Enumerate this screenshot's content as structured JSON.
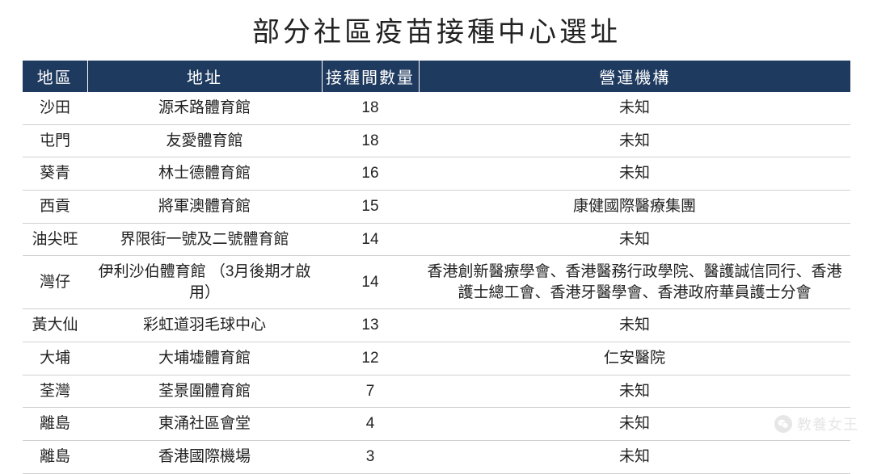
{
  "title": "部分社區疫苗接種中心選址",
  "table": {
    "columns": {
      "district": "地區",
      "address": "地址",
      "count": "接種間數量",
      "operator": "營運機構"
    },
    "column_widths": {
      "district": 80,
      "address": 290,
      "count": 120
    },
    "header_bg": "#1f3a5f",
    "header_fg": "#ffffff",
    "row_border_color": "#d0d0d0",
    "body_font_size": 19,
    "header_font_size": 20,
    "rows": [
      {
        "district": "沙田",
        "address": "源禾路體育館",
        "count": 18,
        "operator": "未知"
      },
      {
        "district": "屯門",
        "address": "友愛體育館",
        "count": 18,
        "operator": "未知"
      },
      {
        "district": "葵青",
        "address": "林士德體育館",
        "count": 16,
        "operator": "未知"
      },
      {
        "district": "西貢",
        "address": "將軍澳體育館",
        "count": 15,
        "operator": "康健國際醫療集團"
      },
      {
        "district": "油尖旺",
        "address": "界限街一號及二號體育館",
        "count": 14,
        "operator": "未知"
      },
      {
        "district": "灣仔",
        "address": "伊利沙伯體育館 （3月後期才啟用）",
        "count": 14,
        "operator": "香港創新醫療學會、香港醫務行政學院、醫護誠信同行、香港護士總工會、香港牙醫學會、香港政府華員護士分會"
      },
      {
        "district": "黃大仙",
        "address": "彩虹道羽毛球中心",
        "count": 13,
        "operator": "未知"
      },
      {
        "district": "大埔",
        "address": "大埔墟體育館",
        "count": 12,
        "operator": "仁安醫院"
      },
      {
        "district": "荃灣",
        "address": "荃景圍體育館",
        "count": 7,
        "operator": "未知"
      },
      {
        "district": "離島",
        "address": "東涌社區會堂",
        "count": 4,
        "operator": "未知"
      },
      {
        "district": "離島",
        "address": "香港國際機場",
        "count": 3,
        "operator": "未知"
      }
    ]
  },
  "watermark": {
    "text": "教養女王",
    "color": "#e6e6e6"
  }
}
